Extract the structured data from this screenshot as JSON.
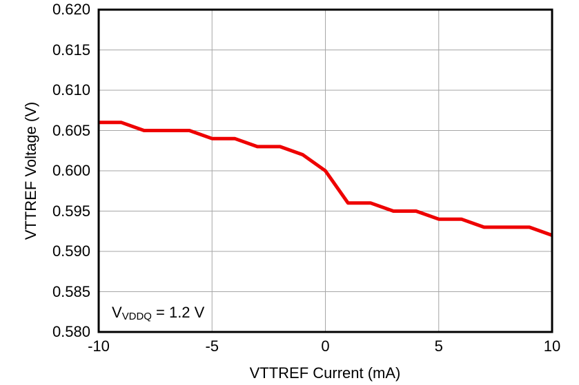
{
  "colors": {
    "background": "#ffffff",
    "frame": "#000000",
    "grid": "#a6a6a6",
    "line": "#ee0000",
    "text": "#000000"
  },
  "chart_data": {
    "type": "line",
    "title": "",
    "xlabel": "VTTREF Current (mA)",
    "ylabel": "VTTREF Voltage (V)",
    "xlim": [
      -10,
      10
    ],
    "ylim": [
      0.58,
      0.62
    ],
    "grid": true,
    "legend_position": "none",
    "x_tick_values": [
      -10,
      -5,
      0,
      5,
      10
    ],
    "x_tick_labels": [
      "-10",
      "-5",
      "0",
      "5",
      "10"
    ],
    "y_tick_values": [
      0.58,
      0.585,
      0.59,
      0.595,
      0.6,
      0.605,
      0.61,
      0.615,
      0.62
    ],
    "y_tick_labels": [
      "0.580",
      "0.585",
      "0.590",
      "0.595",
      "0.600",
      "0.605",
      "0.610",
      "0.615",
      "0.620"
    ],
    "series": [
      {
        "color": "#ee0000",
        "x": [
          -10,
          -9,
          -8,
          -7,
          -6,
          -5,
          -4,
          -3,
          -2,
          -1,
          0,
          1,
          2,
          3,
          4,
          5,
          6,
          7,
          8,
          9,
          10
        ],
        "y": [
          0.606,
          0.606,
          0.605,
          0.605,
          0.605,
          0.604,
          0.604,
          0.603,
          0.603,
          0.602,
          0.6,
          0.596,
          0.596,
          0.595,
          0.595,
          0.594,
          0.594,
          0.593,
          0.593,
          0.593,
          0.592
        ]
      }
    ],
    "annotation": {
      "pre": "V",
      "sub": "VDDQ",
      "post": " = 1.2 V"
    }
  }
}
